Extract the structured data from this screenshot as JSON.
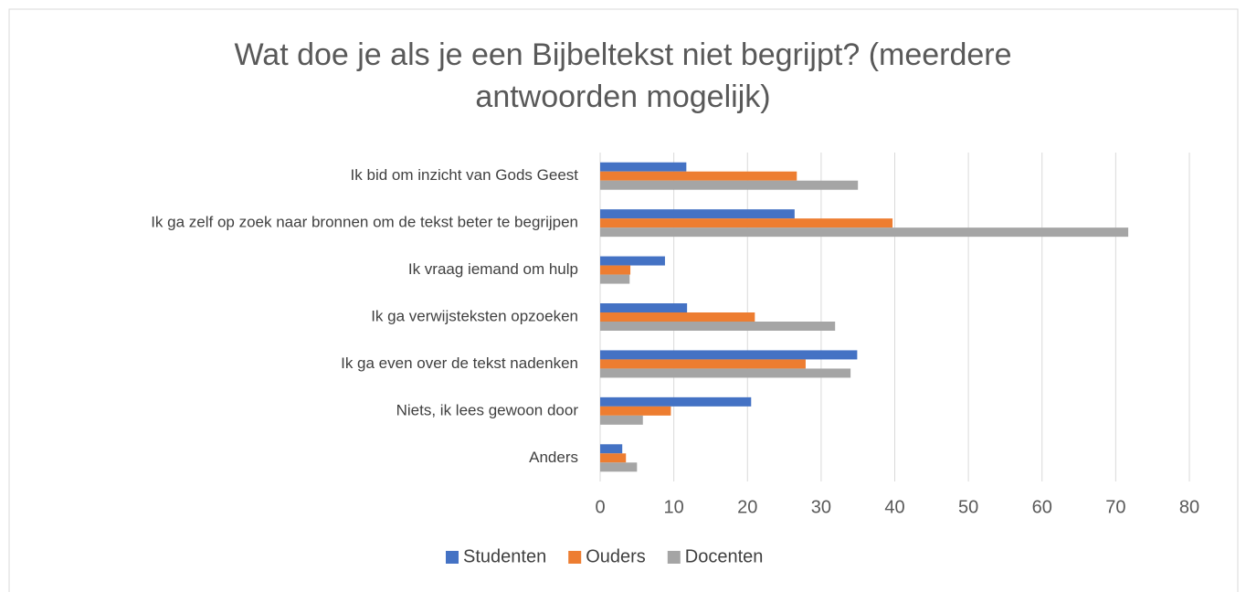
{
  "chart_data": {
    "type": "bar",
    "orientation": "horizontal",
    "title": [
      "Wat doe je als je een Bijbeltekst niet begrijpt? (meerdere",
      "antwoorden mogelijk)"
    ],
    "categories": [
      "Ik bid om inzicht van Gods Geest",
      "Ik ga zelf op zoek naar bronnen om de tekst beter te begrijpen",
      "Ik vraag iemand om hulp",
      "Ik ga verwijsteksten opzoeken",
      "Ik ga even over de tekst nadenken",
      "Niets, ik lees gewoon door",
      "Anders"
    ],
    "series": [
      {
        "name": "Studenten",
        "color": "#4472c4",
        "values": [
          11.7,
          26.4,
          8.8,
          11.8,
          34.9,
          20.5,
          3.0
        ]
      },
      {
        "name": "Ouders",
        "color": "#ed7d31",
        "values": [
          26.7,
          39.7,
          4.1,
          21.0,
          27.9,
          9.6,
          3.5
        ]
      },
      {
        "name": "Docenten",
        "color": "#a5a5a5",
        "values": [
          35.0,
          71.7,
          4.0,
          31.9,
          34.0,
          5.8,
          5.0
        ]
      }
    ],
    "xlim": [
      0,
      80
    ],
    "xticks": [
      0,
      10,
      20,
      30,
      40,
      50,
      60,
      70,
      80
    ],
    "grid": true,
    "legend": "bottom"
  }
}
